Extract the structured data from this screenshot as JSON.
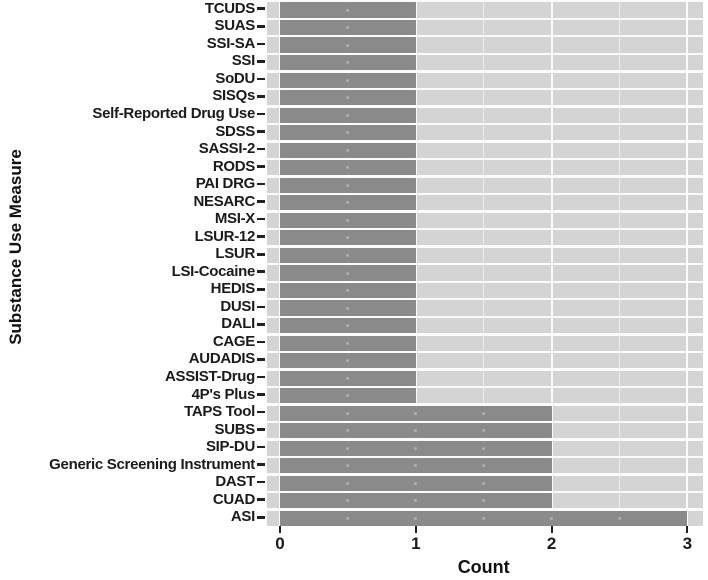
{
  "chart_data": {
    "type": "bar",
    "orientation": "horizontal",
    "title": "",
    "xlabel": "Count",
    "ylabel": "Substance Use Measure",
    "categories": [
      "TCUDS",
      "SUAS",
      "SSI-SA",
      "SSI",
      "SoDU",
      "SISQs",
      "Self-Reported Drug Use",
      "SDSS",
      "SASSI-2",
      "RODS",
      "PAI DRG",
      "NESARC",
      "MSI-X",
      "LSUR-12",
      "LSUR",
      "LSI-Cocaine",
      "HEDIS",
      "DUSI",
      "DALI",
      "CAGE",
      "AUDADIS",
      "ASSIST-Drug",
      "4P's Plus",
      "TAPS Tool",
      "SUBS",
      "SIP-DU",
      "Generic Screening Instrument",
      "DAST",
      "CUAD",
      "ASI"
    ],
    "values": [
      1,
      1,
      1,
      1,
      1,
      1,
      1,
      1,
      1,
      1,
      1,
      1,
      1,
      1,
      1,
      1,
      1,
      1,
      1,
      1,
      1,
      1,
      1,
      2,
      2,
      2,
      2,
      2,
      2,
      3
    ],
    "xlim": [
      0,
      3
    ],
    "xticks": [
      0,
      1,
      2,
      3
    ],
    "grid": true,
    "legend": false,
    "colors": {
      "bar": "#8a8a8a",
      "panel_bg": "#d4d4d4",
      "grid_major": "rgba(255,255,255,0.9)",
      "grid_minor": "rgba(255,255,255,0.62)",
      "axis_text": "#1b1b1b",
      "tick_mark": "#222222"
    }
  }
}
